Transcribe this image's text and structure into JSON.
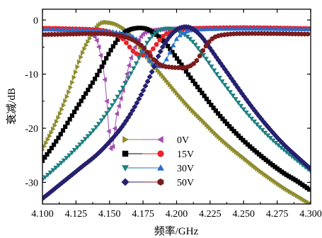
{
  "chart_data": {
    "type": "line",
    "xlabel": "频率/GHz",
    "ylabel": "衰减/dB",
    "xlim": [
      4.1,
      4.3
    ],
    "ylim": [
      -34,
      2
    ],
    "xticks": [
      4.1,
      4.125,
      4.15,
      4.175,
      4.2,
      4.225,
      4.25,
      4.275,
      4.3
    ],
    "xtick_labels": [
      "4.100",
      "4.125",
      "4.150",
      "4.175",
      "4.200",
      "4.225",
      "4.250",
      "4.275",
      "4.300"
    ],
    "yticks": [
      0,
      -10,
      -20,
      -30
    ],
    "ytick_labels": [
      "0",
      "-10",
      "-20",
      "-30"
    ],
    "grid": false,
    "legend_position": "bottom-left",
    "legend_rows": [
      {
        "label": "0V",
        "series_a": "0V S21",
        "series_b": "0V S11"
      },
      {
        "label": "15V",
        "series_a": "15V S21",
        "series_b": "15V S11"
      },
      {
        "label": "30V",
        "series_a": "30V S21",
        "series_b": "30V S11"
      },
      {
        "label": "50V",
        "series_a": "50V S21",
        "series_b": "50V S11"
      }
    ],
    "series": [
      {
        "key": "0V S11",
        "color": "#a44fb0",
        "marker": "tri-left",
        "step": 0.0015,
        "x": [
          4.1,
          4.11,
          4.12,
          4.13,
          4.135,
          4.14,
          4.143,
          4.146,
          4.148,
          4.15,
          4.152,
          4.155,
          4.158,
          4.162,
          4.166,
          4.17,
          4.175,
          4.18,
          4.19,
          4.2,
          4.22,
          4.25,
          4.28,
          4.3
        ],
        "y": [
          -1.6,
          -1.7,
          -1.8,
          -2.0,
          -2.4,
          -3.5,
          -6,
          -10,
          -15,
          -22,
          -24,
          -18,
          -15,
          -11,
          -7,
          -4.5,
          -2.6,
          -2.0,
          -1.7,
          -1.6,
          -1.5,
          -1.5,
          -1.5,
          -1.6
        ]
      },
      {
        "key": "0V S21",
        "color": "#8e8c2e",
        "marker": "tri-right",
        "step": 0.0013,
        "x": [
          4.1,
          4.11,
          4.12,
          4.13,
          4.14,
          4.145,
          4.15,
          4.155,
          4.16,
          4.165,
          4.17,
          4.175,
          4.18,
          4.19,
          4.2,
          4.21,
          4.22,
          4.23,
          4.24,
          4.25,
          4.26,
          4.27,
          4.28,
          4.29,
          4.3
        ],
        "y": [
          -24,
          -19,
          -13,
          -6,
          -1.5,
          -0.5,
          -0.5,
          -0.8,
          -1.5,
          -2.6,
          -4,
          -5.8,
          -7.5,
          -10.5,
          -13.5,
          -16.3,
          -18.8,
          -21.3,
          -23.5,
          -25.5,
          -27.5,
          -29.3,
          -31,
          -32.5,
          -34
        ]
      },
      {
        "key": "15V S21",
        "color": "#000000",
        "marker": "square",
        "step": 0.0017,
        "x": [
          4.1,
          4.11,
          4.12,
          4.13,
          4.14,
          4.15,
          4.155,
          4.16,
          4.165,
          4.17,
          4.175,
          4.18,
          4.19,
          4.2,
          4.21,
          4.22,
          4.23,
          4.24,
          4.25,
          4.26,
          4.27,
          4.28,
          4.29,
          4.3
        ],
        "y": [
          -26,
          -22.5,
          -18.5,
          -14.5,
          -10.5,
          -6,
          -4,
          -2.5,
          -1.8,
          -1.5,
          -1.5,
          -1.9,
          -3.8,
          -7,
          -10.5,
          -13.8,
          -17,
          -19.8,
          -22.3,
          -24.5,
          -26.5,
          -28.3,
          -29.8,
          -31.5
        ]
      },
      {
        "key": "15V S11",
        "color": "#e8232b",
        "marker": "circle",
        "step": 0.0025,
        "x": [
          4.1,
          4.12,
          4.14,
          4.15,
          4.16,
          4.165,
          4.17,
          4.175,
          4.18,
          4.185,
          4.19,
          4.195,
          4.2,
          4.21,
          4.22,
          4.25,
          4.28,
          4.3
        ],
        "y": [
          -1.5,
          -1.6,
          -1.8,
          -2.2,
          -3.5,
          -5.0,
          -6.2,
          -6.5,
          -6.0,
          -4.5,
          -3.0,
          -2.2,
          -1.8,
          -1.6,
          -1.5,
          -1.4,
          -1.5,
          -1.6
        ]
      },
      {
        "key": "30V S21",
        "color": "#1f7f82",
        "marker": "tri-down",
        "step": 0.002,
        "x": [
          4.1,
          4.11,
          4.12,
          4.13,
          4.14,
          4.15,
          4.16,
          4.17,
          4.175,
          4.18,
          4.185,
          4.19,
          4.195,
          4.2,
          4.21,
          4.22,
          4.23,
          4.24,
          4.25,
          4.26,
          4.27,
          4.28,
          4.29,
          4.3
        ],
        "y": [
          -29.5,
          -27.3,
          -25,
          -22.5,
          -19.8,
          -16.5,
          -12.5,
          -8,
          -5.5,
          -3.5,
          -2.3,
          -1.7,
          -1.6,
          -1.9,
          -3.5,
          -6.5,
          -10,
          -13.3,
          -16.5,
          -19.3,
          -21.8,
          -24,
          -26,
          -28
        ]
      },
      {
        "key": "30V S11",
        "color": "#2a6fd0",
        "marker": "tri-up",
        "step": 0.0025,
        "x": [
          4.1,
          4.13,
          4.15,
          4.16,
          4.17,
          4.175,
          4.18,
          4.185,
          4.19,
          4.195,
          4.2,
          4.205,
          4.21,
          4.22,
          4.25,
          4.3
        ],
        "y": [
          -1.7,
          -1.9,
          -2.1,
          -2.5,
          -3.5,
          -5.5,
          -7.5,
          -8.5,
          -8.2,
          -6,
          -3.5,
          -2.4,
          -1.9,
          -1.7,
          -1.6,
          -1.7
        ]
      },
      {
        "key": "50V S21",
        "color": "#26206e",
        "marker": "diamond",
        "step": 0.0016,
        "x": [
          4.1,
          4.11,
          4.12,
          4.13,
          4.14,
          4.15,
          4.16,
          4.17,
          4.18,
          4.185,
          4.19,
          4.195,
          4.2,
          4.205,
          4.21,
          4.215,
          4.22,
          4.23,
          4.24,
          4.25,
          4.26,
          4.27,
          4.28,
          4.29,
          4.3
        ],
        "y": [
          -33,
          -31,
          -29,
          -27,
          -25,
          -22.5,
          -19.5,
          -15.5,
          -10.5,
          -7.5,
          -4.8,
          -3,
          -1.8,
          -1.3,
          -1.4,
          -2.2,
          -3.5,
          -7,
          -10.5,
          -14,
          -17.3,
          -20.3,
          -23,
          -25.3,
          -27.5
        ]
      },
      {
        "key": "50V S11",
        "color": "#7a1c1e",
        "marker": "hexagon",
        "step": 0.0023,
        "x": [
          4.1,
          4.12,
          4.14,
          4.15,
          4.16,
          4.17,
          4.175,
          4.18,
          4.185,
          4.19,
          4.195,
          4.2,
          4.205,
          4.21,
          4.215,
          4.22,
          4.225,
          4.23,
          4.24,
          4.25,
          4.27,
          4.3
        ],
        "y": [
          -2.7,
          -2.6,
          -2.5,
          -2.6,
          -3.0,
          -4.0,
          -5.0,
          -6.5,
          -7.8,
          -8.5,
          -8.7,
          -8.8,
          -8.8,
          -8.5,
          -7.5,
          -5.5,
          -3.8,
          -3.0,
          -2.6,
          -2.5,
          -2.5,
          -2.6
        ]
      }
    ]
  }
}
